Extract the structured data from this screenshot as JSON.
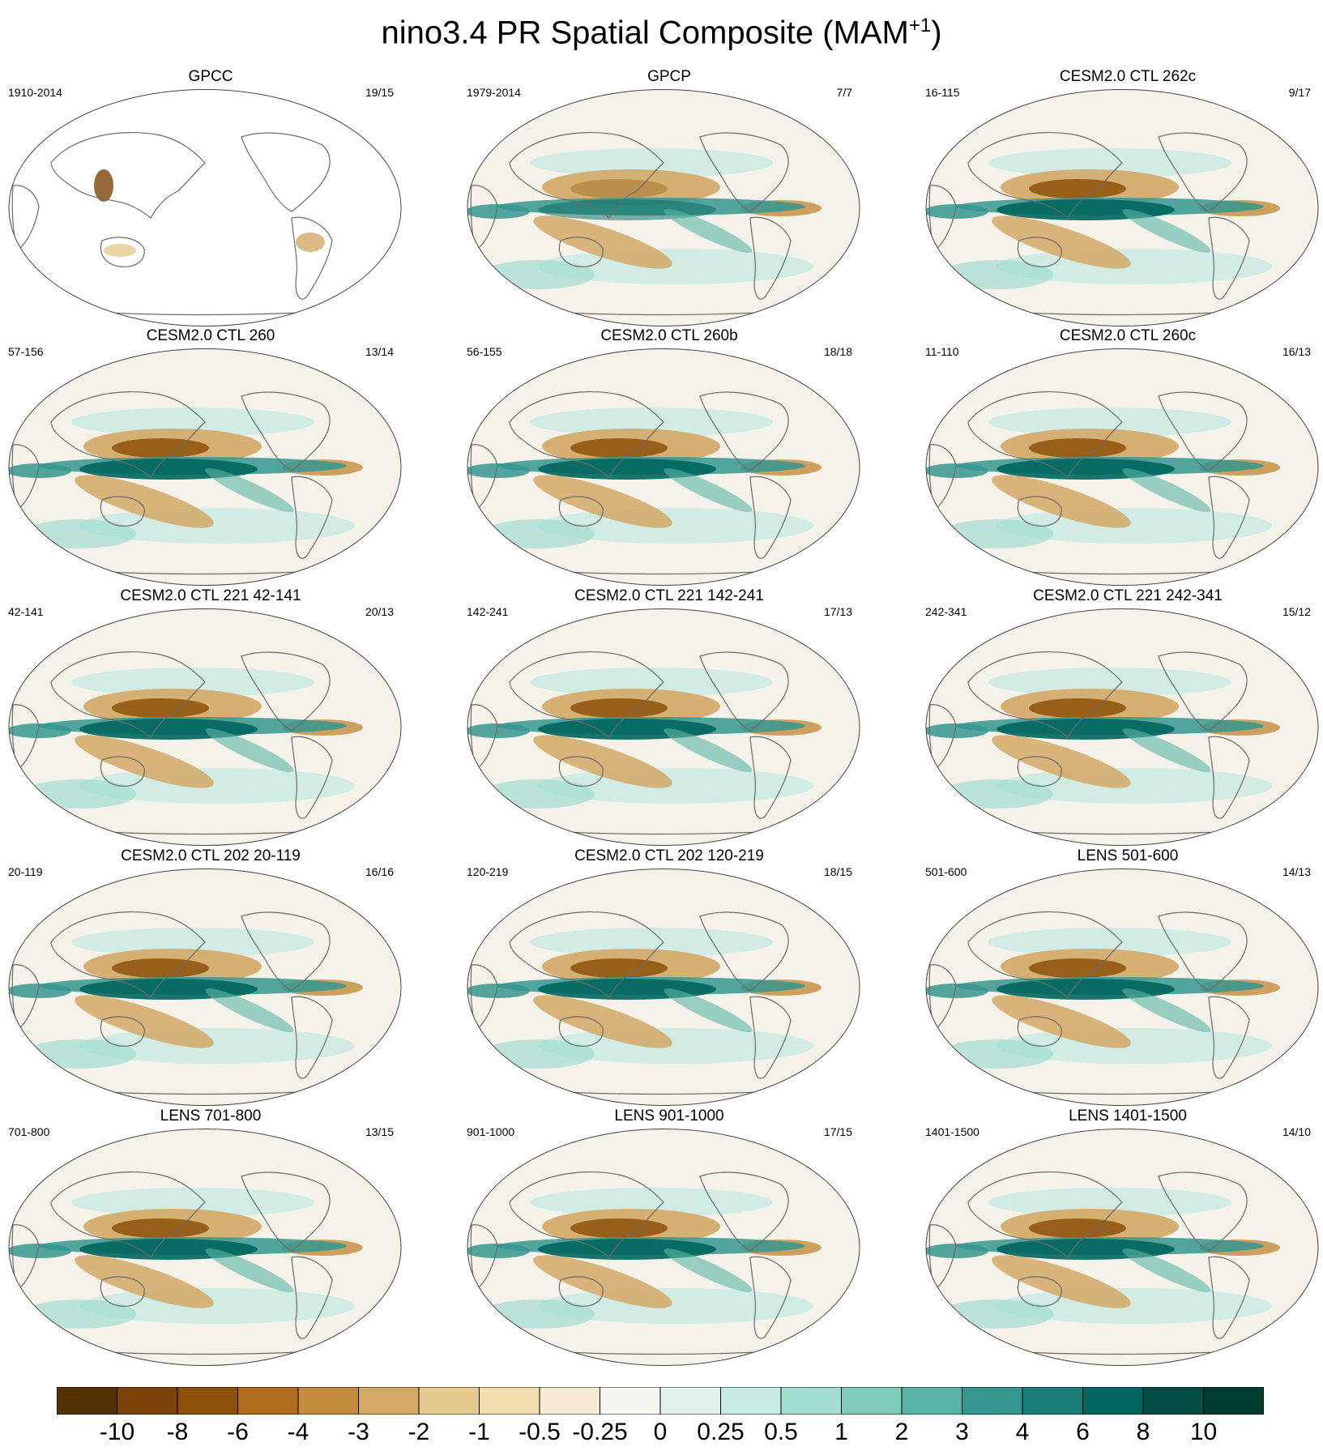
{
  "title": "nino3.4 PR Spatial Composite (MAM",
  "title_superscript": "+1",
  "title_close": ")",
  "panels": [
    {
      "title": "GPCC",
      "left": "1910-2014",
      "right": "19/15",
      "style": "gpcc"
    },
    {
      "title": "GPCP",
      "left": "1979-2014",
      "right": "7/7",
      "style": "obs"
    },
    {
      "title": "CESM2.0 CTL 262c",
      "left": "16-115",
      "right": "9/17",
      "style": "model"
    },
    {
      "title": "CESM2.0 CTL 260",
      "left": "57-156",
      "right": "13/14",
      "style": "model"
    },
    {
      "title": "CESM2.0 CTL 260b",
      "left": "56-155",
      "right": "18/18",
      "style": "model"
    },
    {
      "title": "CESM2.0 CTL 260c",
      "left": "11-110",
      "right": "16/13",
      "style": "model"
    },
    {
      "title": "CESM2.0 CTL 221 42-141",
      "left": "42-141",
      "right": "20/13",
      "style": "model"
    },
    {
      "title": "CESM2.0 CTL 221 142-241",
      "left": "142-241",
      "right": "17/13",
      "style": "model"
    },
    {
      "title": "CESM2.0 CTL 221 242-341",
      "left": "242-341",
      "right": "15/12",
      "style": "model"
    },
    {
      "title": "CESM2.0 CTL 202 20-119",
      "left": "20-119",
      "right": "16/16",
      "style": "model"
    },
    {
      "title": "CESM2.0 CTL 202 120-219",
      "left": "120-219",
      "right": "18/15",
      "style": "model"
    },
    {
      "title": "LENS 501-600",
      "left": "501-600",
      "right": "14/13",
      "style": "lens"
    },
    {
      "title": "LENS 701-800",
      "left": "701-800",
      "right": "13/15",
      "style": "lens"
    },
    {
      "title": "LENS 901-1000",
      "left": "901-1000",
      "right": "17/15",
      "style": "lens"
    },
    {
      "title": "LENS 1401-1500",
      "left": "1401-1500",
      "right": "14/10",
      "style": "lens"
    }
  ],
  "colorbar": {
    "colors": [
      "#543005",
      "#7a4408",
      "#8c510a",
      "#b06c1c",
      "#c38b3c",
      "#d3a966",
      "#e5c98e",
      "#f0dcae",
      "#f5ebd3",
      "#f5f5f0",
      "#e3f2ef",
      "#c7eae4",
      "#a2ddd2",
      "#7fcdbb",
      "#5ab4a7",
      "#35978f",
      "#1a7d76",
      "#01665e",
      "#024d45",
      "#003c30"
    ],
    "labels": [
      "-10",
      "-8",
      "-6",
      "-4",
      "-3",
      "-2",
      "-1",
      "-0.5",
      "-0.25",
      "0",
      "0.25",
      "0.5",
      "1",
      "2",
      "3",
      "4",
      "6",
      "8",
      "10"
    ]
  }
}
